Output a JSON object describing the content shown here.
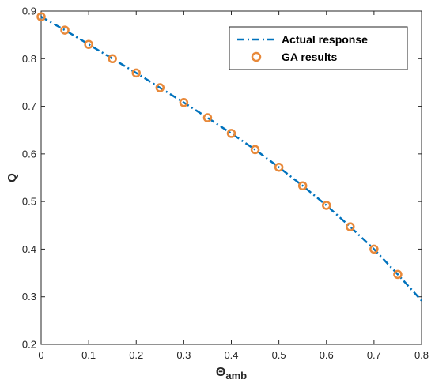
{
  "chart_data": {
    "type": "line",
    "xlabel_main": "Θ",
    "xlabel_sub": "amb",
    "ylabel": "Q",
    "xlim": [
      0,
      0.8
    ],
    "ylim": [
      0.2,
      0.9
    ],
    "x_ticks": [
      "0",
      "0.1",
      "0.2",
      "0.3",
      "0.4",
      "0.5",
      "0.6",
      "0.7",
      "0.8"
    ],
    "y_ticks": [
      "0.2",
      "0.3",
      "0.4",
      "0.5",
      "0.6",
      "0.7",
      "0.8",
      "0.9"
    ],
    "grid": false,
    "legend_placement": "top-right",
    "series": [
      {
        "name": "Actual response",
        "style": "dash-dot line",
        "color": "#0072BD",
        "x": [
          0,
          0.05,
          0.1,
          0.15,
          0.2,
          0.25,
          0.3,
          0.35,
          0.4,
          0.45,
          0.5,
          0.55,
          0.6,
          0.65,
          0.7,
          0.75,
          0.8
        ],
        "y": [
          0.888,
          0.86,
          0.83,
          0.8,
          0.77,
          0.739,
          0.708,
          0.676,
          0.643,
          0.609,
          0.572,
          0.533,
          0.492,
          0.447,
          0.4,
          0.347,
          0.292
        ]
      },
      {
        "name": "GA results",
        "style": "circle markers",
        "color": "#E8893A",
        "x": [
          0,
          0.05,
          0.1,
          0.15,
          0.2,
          0.25,
          0.3,
          0.35,
          0.4,
          0.45,
          0.5,
          0.55,
          0.6,
          0.65,
          0.7,
          0.75
        ],
        "y": [
          0.888,
          0.86,
          0.83,
          0.8,
          0.77,
          0.739,
          0.708,
          0.676,
          0.643,
          0.609,
          0.572,
          0.533,
          0.492,
          0.447,
          0.4,
          0.347
        ]
      }
    ]
  }
}
